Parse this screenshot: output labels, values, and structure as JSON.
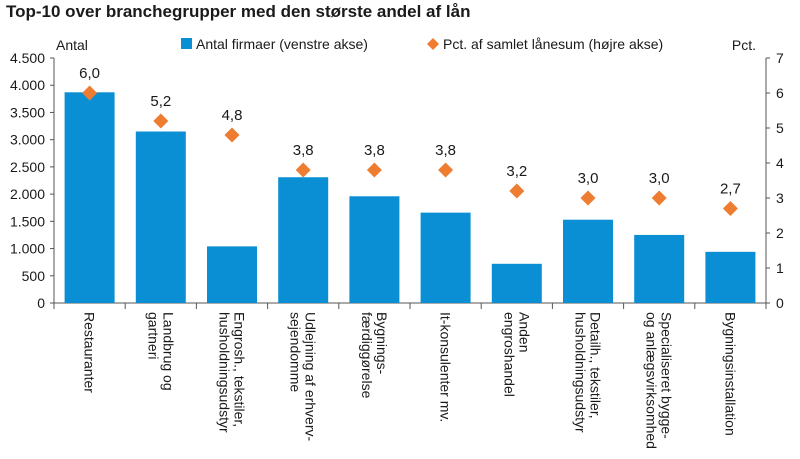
{
  "chart_data": {
    "type": "bar",
    "title": "Top-10 over branchegrupper med den største andel af lån",
    "ylabel_left": "Antal",
    "ylabel_right": "Pct.",
    "legend_position": "top",
    "grid": false,
    "categories": [
      "Restauranter",
      "Landbrug og\ngartneri",
      "Engrosh., tekstiler,\nhusholdningsudstyr",
      "Udlejning af erhverv-\nsejendomme",
      "Bygnings-\nfærdiggørelse",
      "It-konsulenter mv.",
      "Anden\nengroshandel",
      "Detailh., tekstiler,\nhusholdningsudstyr",
      "Specialiseret bygge-\nog anlægsvirksomhed",
      "Bygningsinstallation"
    ],
    "series": [
      {
        "name": "Antal firmaer (venstre akse)",
        "axis": "left",
        "kind": "bar",
        "color": "#0a8fd4",
        "values": [
          3870,
          3150,
          1040,
          2310,
          1960,
          1660,
          720,
          1530,
          1250,
          940
        ]
      },
      {
        "name": "Pct. af samlet lånesum (højre akse)",
        "axis": "right",
        "kind": "marker",
        "color": "#ee7d31",
        "values": [
          6.0,
          5.2,
          4.8,
          3.8,
          3.8,
          3.8,
          3.2,
          3.0,
          3.0,
          2.7
        ],
        "labels": [
          "6,0",
          "5,2",
          "4,8",
          "3,8",
          "3,8",
          "3,8",
          "3,2",
          "3,0",
          "3,0",
          "2,7"
        ]
      }
    ],
    "left_axis": {
      "ylim": [
        0,
        4500
      ],
      "ticks": [
        0,
        500,
        1000,
        1500,
        2000,
        2500,
        3000,
        3500,
        4000,
        4500
      ],
      "tick_labels": [
        "0",
        "500",
        "1.000",
        "1.500",
        "2.000",
        "2.500",
        "3.000",
        "3.500",
        "4.000",
        "4.500"
      ]
    },
    "right_axis": {
      "ylim": [
        0,
        7
      ],
      "ticks": [
        0,
        1,
        2,
        3,
        4,
        5,
        6,
        7
      ],
      "tick_labels": [
        "0",
        "1",
        "2",
        "3",
        "4",
        "5",
        "6",
        "7"
      ]
    }
  }
}
